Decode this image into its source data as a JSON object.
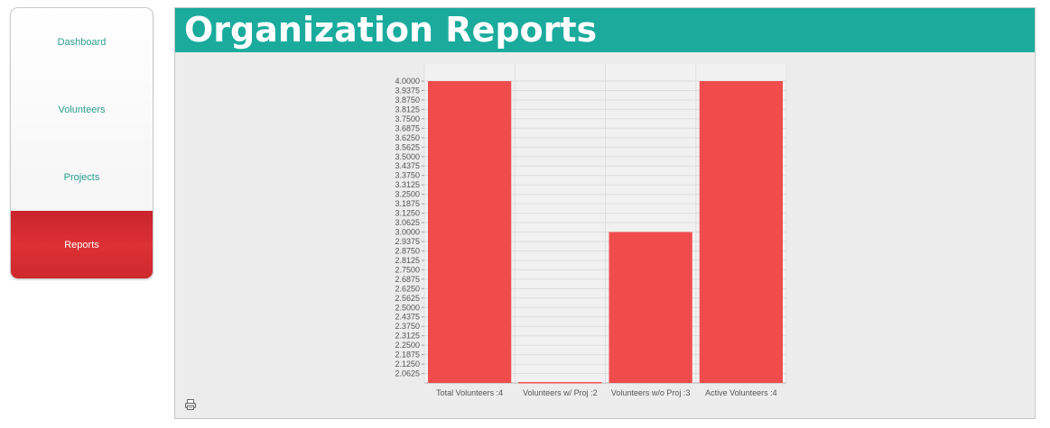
{
  "sidebar": {
    "items": [
      {
        "label": "Dashboard",
        "active": false
      },
      {
        "label": "Volunteers",
        "active": false
      },
      {
        "label": "Projects",
        "active": false
      },
      {
        "label": "Reports",
        "active": true
      }
    ]
  },
  "header": {
    "title": "Organization Reports"
  },
  "chart_data": {
    "type": "bar",
    "categories": [
      "Total Volunteers :4",
      "Volunteers w/ Proj :2",
      "Volunteers w/o Proj :3",
      "Active Volunteers :4"
    ],
    "values": [
      4,
      2,
      3,
      4
    ],
    "ylim": [
      2.0,
      4.0
    ],
    "yticks": [
      "2.0625",
      "2.1250",
      "2.1875",
      "2.2500",
      "2.3125",
      "2.3750",
      "2.4375",
      "2.5000",
      "2.5625",
      "2.6250",
      "2.6875",
      "2.7500",
      "2.8125",
      "2.8750",
      "2.9375",
      "3.0000",
      "3.0625",
      "3.1250",
      "3.1875",
      "3.2500",
      "3.3125",
      "3.3750",
      "3.4375",
      "3.5000",
      "3.5625",
      "3.6250",
      "3.6875",
      "3.7500",
      "3.8125",
      "3.8750",
      "3.9375",
      "4.0000"
    ],
    "grid": true,
    "colors": {
      "bar": "#f04c4c",
      "grid": "#dcdcdc",
      "plot_bg": "#f1f1f1",
      "tick_text": "#555555"
    }
  },
  "icons": {
    "print": "printer-icon"
  }
}
